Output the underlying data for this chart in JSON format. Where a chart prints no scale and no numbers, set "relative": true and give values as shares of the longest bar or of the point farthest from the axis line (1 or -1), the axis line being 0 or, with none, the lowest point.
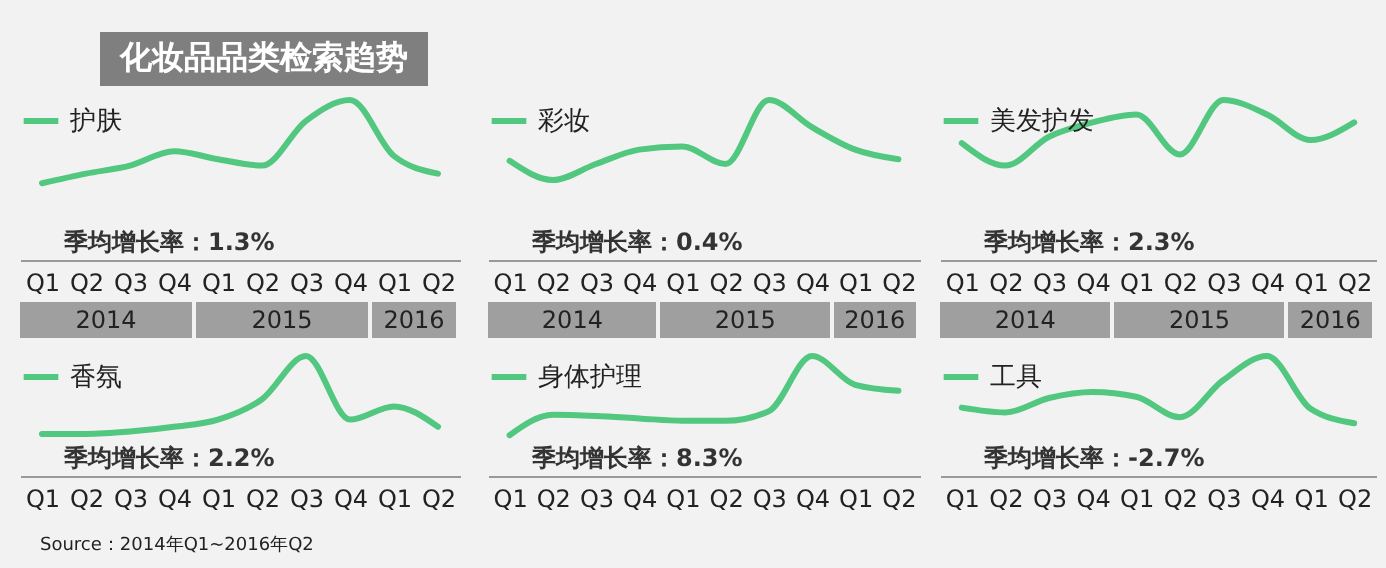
{
  "chart_data": [
    {
      "type": "line",
      "title": "化妆品品类检索趋势",
      "relative": true,
      "legend": "top left",
      "categories": [
        "Q1",
        "Q2",
        "Q3",
        "Q4",
        "Q1",
        "Q2",
        "Q3",
        "Q4",
        "Q1",
        "Q2"
      ],
      "annotations": [
        "季均增长率：1.3%",
        "2014",
        "2015",
        "2016"
      ],
      "series": [
        {
          "name": "护肤",
          "color": "#52c77f",
          "values": [
            0.48,
            0.54,
            0.59,
            0.68,
            0.63,
            0.59,
            0.87,
            1,
            0.65,
            0.54
          ]
        }
      ]
    },
    {
      "type": "line",
      "relative": true,
      "legend": "top left",
      "categories": [
        "Q1",
        "Q2",
        "Q3",
        "Q4",
        "Q1",
        "Q2",
        "Q3",
        "Q4",
        "Q1",
        "Q2"
      ],
      "annotations": [
        "季均增长率：0.4%",
        "2014",
        "2015",
        "2016"
      ],
      "series": [
        {
          "name": "彩妆",
          "color": "#52c77f",
          "values": [
            0.62,
            0.5,
            0.6,
            0.69,
            0.71,
            0.6,
            1,
            0.83,
            0.69,
            0.63
          ]
        }
      ]
    },
    {
      "type": "line",
      "relative": true,
      "legend": "top left",
      "categories": [
        "Q1",
        "Q2",
        "Q3",
        "Q4",
        "Q1",
        "Q2",
        "Q3",
        "Q4",
        "Q1",
        "Q2"
      ],
      "annotations": [
        "季均增长率：2.3%",
        "2014",
        "2015",
        "2016"
      ],
      "series": [
        {
          "name": "美发护发",
          "color": "#52c77f",
          "values": [
            0.73,
            0.59,
            0.77,
            0.86,
            0.91,
            0.66,
            1,
            0.91,
            0.75,
            0.86
          ]
        }
      ]
    },
    {
      "type": "line",
      "relative": true,
      "legend": "top left",
      "categories": [
        "Q1",
        "Q2",
        "Q3",
        "Q4",
        "Q1",
        "Q2",
        "Q3",
        "Q4",
        "Q1",
        "Q2"
      ],
      "annotations": [
        "季均增长率：2.2%",
        "Source：2014年Q1~2016年Q2"
      ],
      "series": [
        {
          "name": "香氛",
          "color": "#52c77f",
          "values": [
            0.35,
            0.35,
            0.37,
            0.41,
            0.47,
            0.64,
            1,
            0.47,
            0.58,
            0.41
          ]
        }
      ]
    },
    {
      "type": "line",
      "relative": true,
      "legend": "top left",
      "categories": [
        "Q1",
        "Q2",
        "Q3",
        "Q4",
        "Q1",
        "Q2",
        "Q3",
        "Q4",
        "Q1",
        "Q2"
      ],
      "annotations": [
        "季均增长率：8.3%"
      ],
      "series": [
        {
          "name": "身体护理",
          "color": "#52c77f",
          "values": [
            0.34,
            0.51,
            0.5,
            0.48,
            0.46,
            0.46,
            0.54,
            1,
            0.76,
            0.71
          ]
        }
      ]
    },
    {
      "type": "line",
      "relative": true,
      "legend": "top left",
      "categories": [
        "Q1",
        "Q2",
        "Q3",
        "Q4",
        "Q1",
        "Q2",
        "Q3",
        "Q4",
        "Q1",
        "Q2"
      ],
      "annotations": [
        "季均增长率：-2.7%"
      ],
      "series": [
        {
          "name": "工具",
          "color": "#52c77f",
          "values": [
            0.57,
            0.53,
            0.65,
            0.7,
            0.66,
            0.49,
            0.8,
            1,
            0.56,
            0.44
          ]
        }
      ]
    }
  ]
}
